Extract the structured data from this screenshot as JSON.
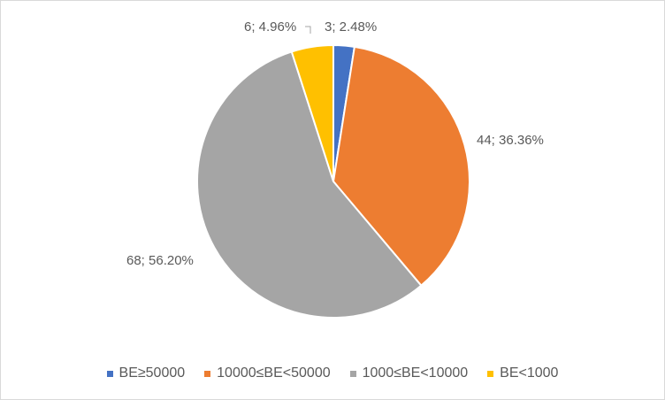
{
  "chart_data": {
    "type": "pie",
    "title": "",
    "start_angle_deg": 0,
    "direction": "clockwise",
    "slices": [
      {
        "name": "BE≥50000",
        "value": 3,
        "percent": "2.48%",
        "label": "3; 2.48%",
        "color": "#4472C4"
      },
      {
        "name": "10000≤BE<50000",
        "value": 44,
        "percent": "36.36%",
        "label": "44; 36.36%",
        "color": "#ED7D31"
      },
      {
        "name": "1000≤BE<10000",
        "value": 68,
        "percent": "56.20%",
        "label": "68; 56.20%",
        "color": "#A5A5A5"
      },
      {
        "name": "BE<1000",
        "value": 6,
        "percent": "4.96%",
        "label": "6; 4.96%",
        "color": "#FFC000"
      }
    ],
    "legend_position": "bottom",
    "label_color": "#595959"
  }
}
